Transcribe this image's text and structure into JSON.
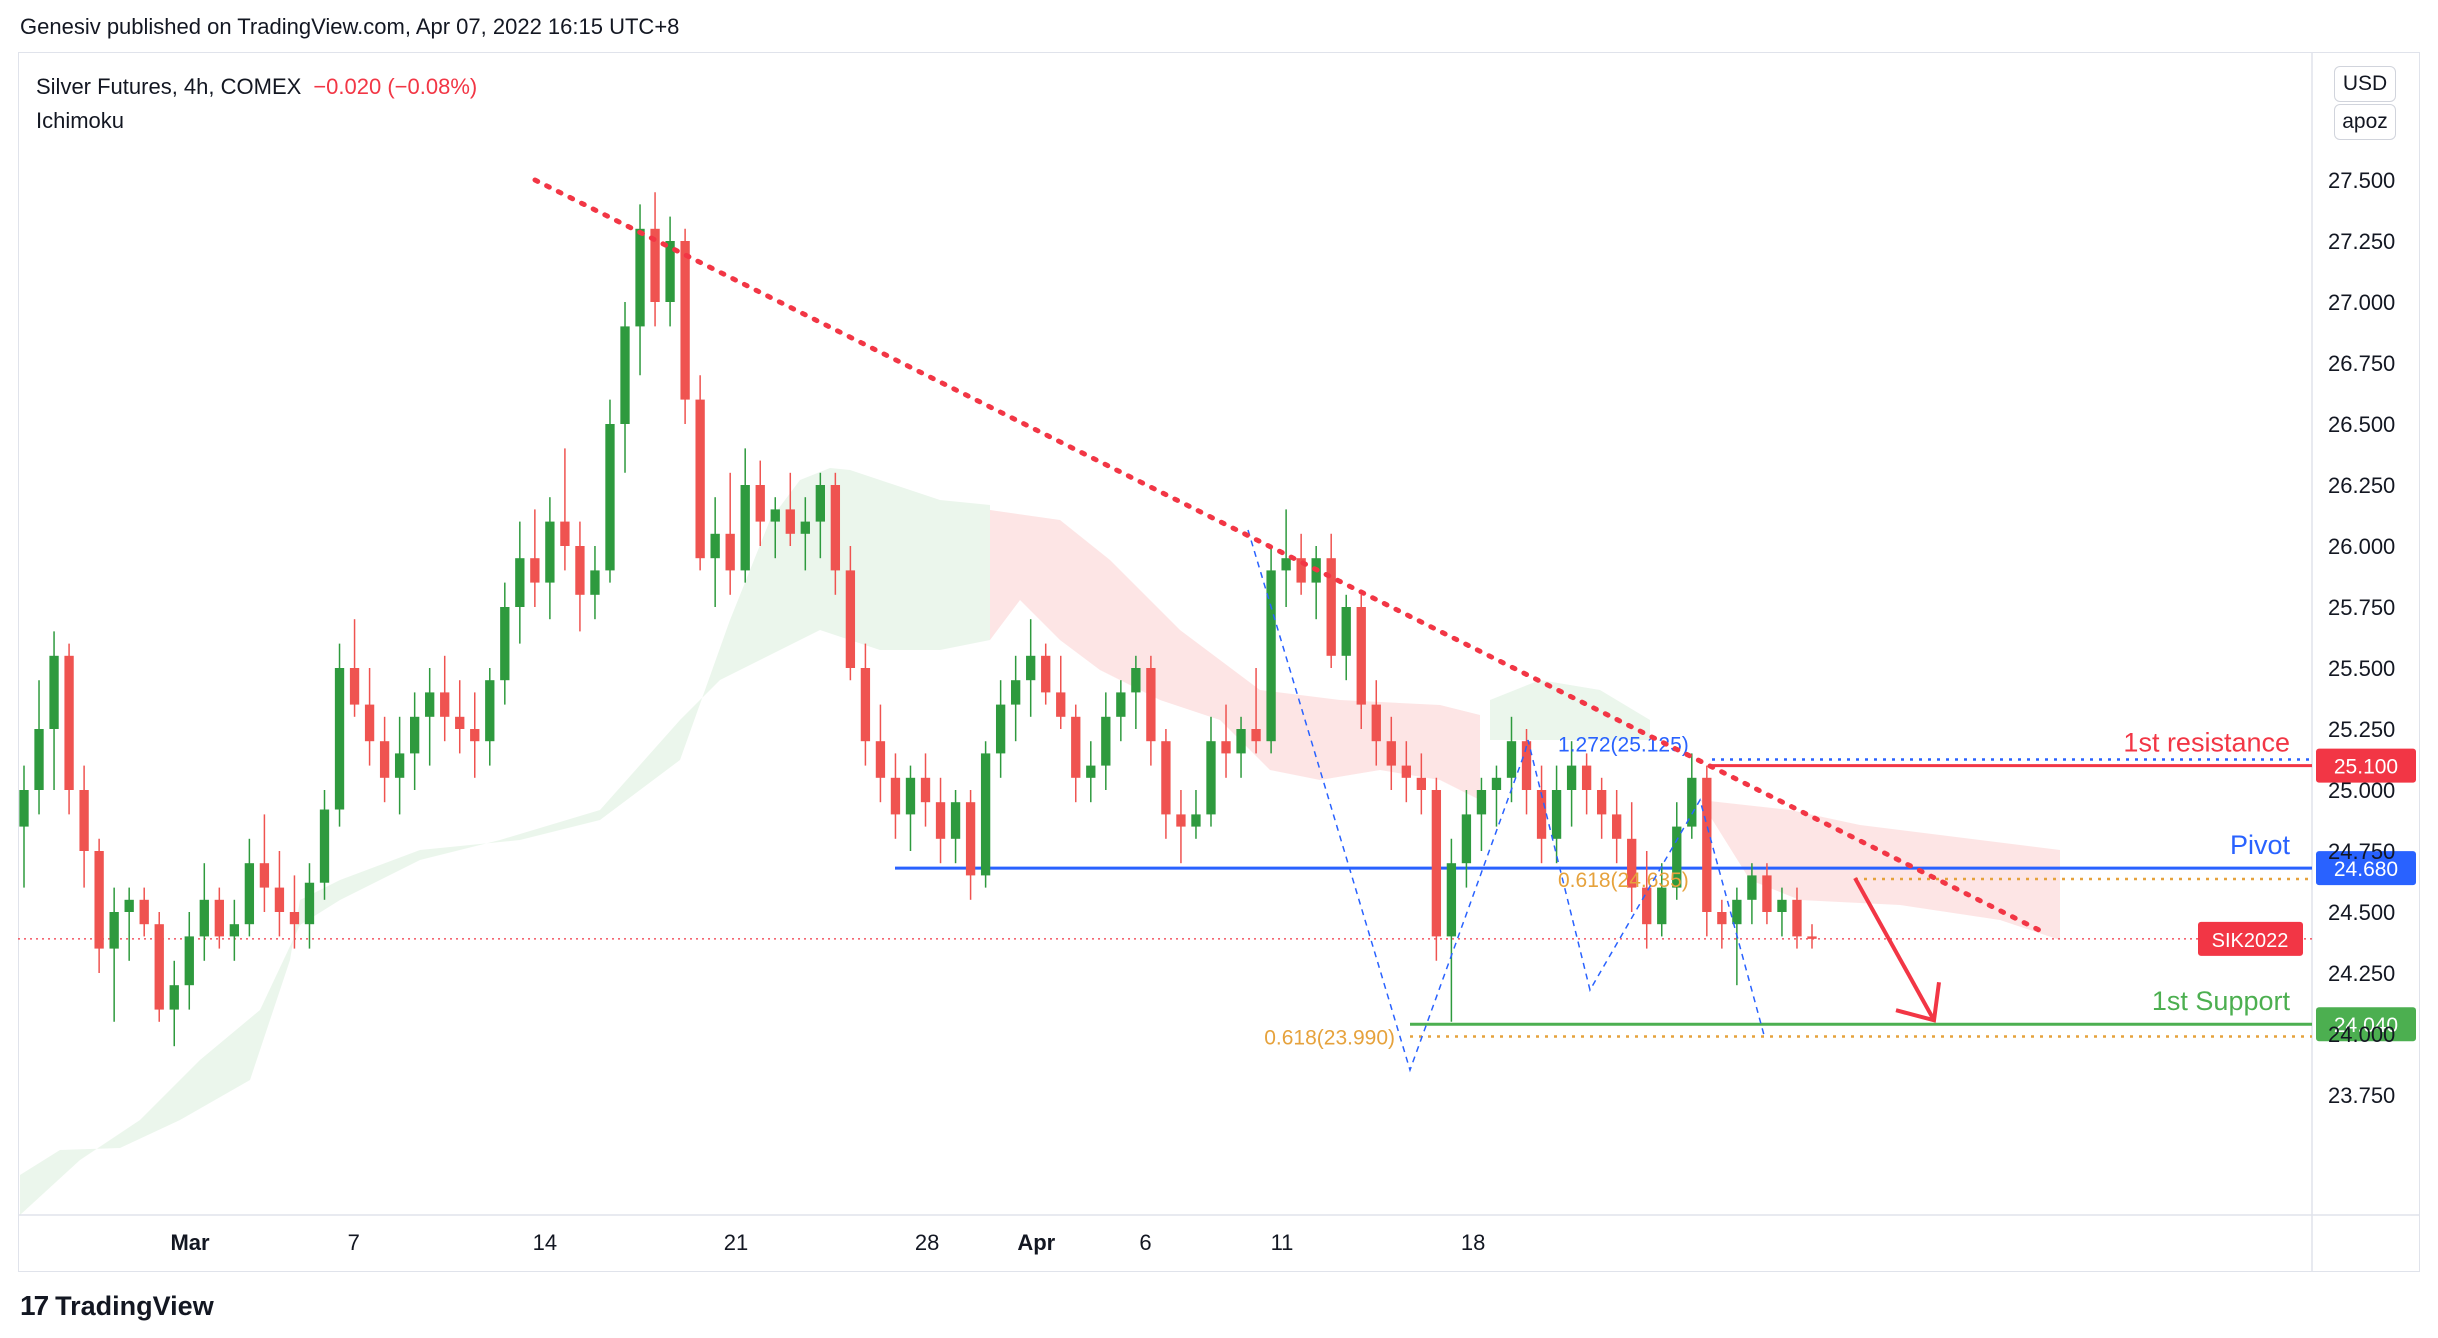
{
  "header": {
    "publisher_line": "Genesiv published on TradingView.com, Apr 07, 2022 16:15 UTC+8"
  },
  "legend": {
    "symbol": "Silver Futures, 4h, COMEX",
    "change": "−0.020 (−0.08%)",
    "indicator": "Ichimoku"
  },
  "scale_controls": {
    "currency": "USD",
    "scale_mode": "apoz"
  },
  "footer": {
    "brand": "TradingView",
    "logo_mark": "17"
  },
  "colors": {
    "up": "#26a69a",
    "up_candle": "#2e9a3e",
    "down_candle": "#ef5350",
    "resistance": "#f23645",
    "pivot": "#2962ff",
    "support": "#4caf50",
    "fib": "#e6a23c",
    "cloud_bull": "#e8f5e9",
    "cloud_bear": "#fde2e2"
  },
  "chart_data": {
    "type": "candlestick",
    "title": "Silver Futures, 4h, COMEX",
    "ylim": [
      23.6,
      27.8
    ],
    "y_ticks": [
      {
        "value": 27.5,
        "label": "27.500"
      },
      {
        "value": 27.25,
        "label": "27.250"
      },
      {
        "value": 27.0,
        "label": "27.000"
      },
      {
        "value": 26.75,
        "label": "26.750"
      },
      {
        "value": 26.5,
        "label": "26.500"
      },
      {
        "value": 26.25,
        "label": "26.250"
      },
      {
        "value": 26.0,
        "label": "26.000"
      },
      {
        "value": 25.75,
        "label": "25.750"
      },
      {
        "value": 25.5,
        "label": "25.500"
      },
      {
        "value": 25.25,
        "label": "25.250"
      },
      {
        "value": 25.0,
        "label": "25.000"
      },
      {
        "value": 24.75,
        "label": "24.750"
      },
      {
        "value": 24.5,
        "label": "24.500"
      },
      {
        "value": 24.25,
        "label": "24.250"
      },
      {
        "value": 24.0,
        "label": "24.000"
      },
      {
        "value": 23.75,
        "label": "23.750"
      }
    ],
    "x_ticks": [
      {
        "day": 1,
        "label": "Mar",
        "bold": true
      },
      {
        "day": 7,
        "label": "7"
      },
      {
        "day": 14,
        "label": "14"
      },
      {
        "day": 21,
        "label": "21"
      },
      {
        "day": 28,
        "label": "28"
      },
      {
        "day": 32,
        "label": "Apr",
        "bold": true
      },
      {
        "day": 36,
        "label": "6"
      },
      {
        "day": 41,
        "label": "11"
      },
      {
        "day": 48,
        "label": "18"
      }
    ],
    "levels": [
      {
        "name": "1st resistance",
        "value": 25.1,
        "label": "25.100",
        "color": "#f23645"
      },
      {
        "name": "Pivot",
        "value": 24.68,
        "label": "24.680",
        "color": "#2962ff"
      },
      {
        "name": "1st Support",
        "value": 24.04,
        "label": "24.040",
        "color": "#4caf50"
      }
    ],
    "fib_annotations": [
      {
        "label": "1.272(25.125)",
        "value": 25.125,
        "color": "#2962ff"
      },
      {
        "label": "0.618(23.990)",
        "value": 23.99,
        "color": "#e6a23c"
      },
      {
        "label": "0.618(24.635)",
        "value": 24.635,
        "color": "#e6a23c"
      }
    ],
    "current_price": {
      "label": "SIK2022",
      "value": 24.39
    },
    "trendline": {
      "from": {
        "day": 9.2,
        "value": 27.5
      },
      "to": {
        "day": 47,
        "value": 24.42
      }
    },
    "forecast_arrow": {
      "from": {
        "day": 39.4,
        "value": 24.68
      },
      "to": {
        "day": 41.4,
        "value": 24.04
      }
    },
    "candles": [
      [
        24.85,
        25.1,
        24.6,
        25.0
      ],
      [
        25.0,
        25.45,
        24.9,
        25.25
      ],
      [
        25.25,
        25.65,
        25.0,
        25.55
      ],
      [
        25.55,
        25.6,
        24.9,
        25.0
      ],
      [
        25.0,
        25.1,
        24.6,
        24.75
      ],
      [
        24.75,
        24.8,
        24.25,
        24.35
      ],
      [
        24.35,
        24.6,
        24.05,
        24.5
      ],
      [
        24.5,
        24.6,
        24.3,
        24.55
      ],
      [
        24.55,
        24.6,
        24.4,
        24.45
      ],
      [
        24.45,
        24.5,
        24.05,
        24.1
      ],
      [
        24.1,
        24.3,
        23.95,
        24.2
      ],
      [
        24.2,
        24.5,
        24.1,
        24.4
      ],
      [
        24.4,
        24.7,
        24.3,
        24.55
      ],
      [
        24.55,
        24.6,
        24.35,
        24.4
      ],
      [
        24.4,
        24.55,
        24.3,
        24.45
      ],
      [
        24.45,
        24.8,
        24.4,
        24.7
      ],
      [
        24.7,
        24.9,
        24.5,
        24.6
      ],
      [
        24.6,
        24.75,
        24.4,
        24.5
      ],
      [
        24.5,
        24.65,
        24.35,
        24.45
      ],
      [
        24.45,
        24.7,
        24.35,
        24.62
      ],
      [
        24.62,
        25.0,
        24.55,
        24.92
      ],
      [
        24.92,
        25.6,
        24.85,
        25.5
      ],
      [
        25.5,
        25.7,
        25.3,
        25.35
      ],
      [
        25.35,
        25.5,
        25.1,
        25.2
      ],
      [
        25.2,
        25.3,
        24.95,
        25.05
      ],
      [
        25.05,
        25.3,
        24.9,
        25.15
      ],
      [
        25.15,
        25.4,
        25.0,
        25.3
      ],
      [
        25.3,
        25.5,
        25.1,
        25.4
      ],
      [
        25.4,
        25.55,
        25.2,
        25.3
      ],
      [
        25.3,
        25.45,
        25.15,
        25.25
      ],
      [
        25.25,
        25.4,
        25.05,
        25.2
      ],
      [
        25.2,
        25.5,
        25.1,
        25.45
      ],
      [
        25.45,
        25.85,
        25.35,
        25.75
      ],
      [
        25.75,
        26.1,
        25.6,
        25.95
      ],
      [
        25.95,
        26.15,
        25.75,
        25.85
      ],
      [
        25.85,
        26.2,
        25.7,
        26.1
      ],
      [
        26.1,
        26.4,
        25.9,
        26.0
      ],
      [
        26.0,
        26.1,
        25.65,
        25.8
      ],
      [
        25.8,
        26.0,
        25.7,
        25.9
      ],
      [
        25.9,
        26.6,
        25.85,
        26.5
      ],
      [
        26.5,
        27.0,
        26.3,
        26.9
      ],
      [
        26.9,
        27.4,
        26.7,
        27.3
      ],
      [
        27.3,
        27.45,
        26.9,
        27.0
      ],
      [
        27.0,
        27.35,
        26.9,
        27.25
      ],
      [
        27.25,
        27.3,
        26.5,
        26.6
      ],
      [
        26.6,
        26.7,
        25.9,
        25.95
      ],
      [
        25.95,
        26.2,
        25.75,
        26.05
      ],
      [
        26.05,
        26.3,
        25.8,
        25.9
      ],
      [
        25.9,
        26.4,
        25.85,
        26.25
      ],
      [
        26.25,
        26.35,
        26.0,
        26.1
      ],
      [
        26.1,
        26.2,
        25.95,
        26.15
      ],
      [
        26.15,
        26.3,
        26.0,
        26.05
      ],
      [
        26.05,
        26.2,
        25.9,
        26.1
      ],
      [
        26.1,
        26.3,
        25.95,
        26.25
      ],
      [
        26.25,
        26.3,
        25.8,
        25.9
      ],
      [
        25.9,
        26.0,
        25.45,
        25.5
      ],
      [
        25.5,
        25.6,
        25.1,
        25.2
      ],
      [
        25.2,
        25.35,
        24.95,
        25.05
      ],
      [
        25.05,
        25.15,
        24.8,
        24.9
      ],
      [
        24.9,
        25.1,
        24.75,
        25.05
      ],
      [
        25.05,
        25.15,
        24.85,
        24.95
      ],
      [
        24.95,
        25.05,
        24.7,
        24.8
      ],
      [
        24.8,
        25.0,
        24.7,
        24.95
      ],
      [
        24.95,
        25.0,
        24.55,
        24.65
      ],
      [
        24.65,
        25.2,
        24.6,
        25.15
      ],
      [
        25.15,
        25.45,
        25.05,
        25.35
      ],
      [
        25.35,
        25.55,
        25.2,
        25.45
      ],
      [
        25.45,
        25.7,
        25.3,
        25.55
      ],
      [
        25.55,
        25.6,
        25.35,
        25.4
      ],
      [
        25.4,
        25.55,
        25.25,
        25.3
      ],
      [
        25.3,
        25.35,
        24.95,
        25.05
      ],
      [
        25.05,
        25.2,
        24.95,
        25.1
      ],
      [
        25.1,
        25.4,
        25.0,
        25.3
      ],
      [
        25.3,
        25.45,
        25.2,
        25.4
      ],
      [
        25.4,
        25.55,
        25.25,
        25.5
      ],
      [
        25.5,
        25.55,
        25.1,
        25.2
      ],
      [
        25.2,
        25.25,
        24.8,
        24.9
      ],
      [
        24.9,
        25.0,
        24.7,
        24.85
      ],
      [
        24.85,
        25.0,
        24.8,
        24.9
      ],
      [
        24.9,
        25.3,
        24.85,
        25.2
      ],
      [
        25.2,
        25.35,
        25.05,
        25.15
      ],
      [
        25.15,
        25.3,
        25.05,
        25.25
      ],
      [
        25.25,
        25.5,
        25.15,
        25.2
      ],
      [
        25.2,
        26.0,
        25.15,
        25.9
      ],
      [
        25.9,
        26.15,
        25.75,
        25.95
      ],
      [
        25.95,
        26.05,
        25.8,
        25.85
      ],
      [
        25.85,
        26.0,
        25.7,
        25.95
      ],
      [
        25.95,
        26.05,
        25.5,
        25.55
      ],
      [
        25.55,
        25.8,
        25.45,
        25.75
      ],
      [
        25.75,
        25.8,
        25.25,
        25.35
      ],
      [
        25.35,
        25.45,
        25.1,
        25.2
      ],
      [
        25.2,
        25.3,
        25.0,
        25.1
      ],
      [
        25.1,
        25.2,
        24.95,
        25.05
      ],
      [
        25.05,
        25.15,
        24.9,
        25.0
      ],
      [
        25.0,
        25.05,
        24.3,
        24.4
      ],
      [
        24.4,
        24.8,
        24.05,
        24.7
      ],
      [
        24.7,
        25.0,
        24.6,
        24.9
      ],
      [
        24.9,
        25.05,
        24.75,
        25.0
      ],
      [
        25.0,
        25.1,
        24.85,
        25.05
      ],
      [
        25.05,
        25.3,
        24.95,
        25.2
      ],
      [
        25.2,
        25.25,
        24.9,
        25.0
      ],
      [
        25.0,
        25.1,
        24.7,
        24.8
      ],
      [
        24.8,
        25.1,
        24.7,
        25.0
      ],
      [
        25.0,
        25.2,
        24.85,
        25.1
      ],
      [
        25.1,
        25.15,
        24.9,
        25.0
      ],
      [
        25.0,
        25.05,
        24.8,
        24.9
      ],
      [
        24.9,
        25.0,
        24.7,
        24.8
      ],
      [
        24.8,
        24.95,
        24.5,
        24.6
      ],
      [
        24.6,
        24.75,
        24.35,
        24.45
      ],
      [
        24.45,
        24.7,
        24.4,
        24.6
      ],
      [
        24.6,
        24.95,
        24.55,
        24.85
      ],
      [
        24.85,
        25.15,
        24.8,
        25.05
      ],
      [
        25.05,
        25.1,
        24.4,
        24.5
      ],
      [
        24.5,
        24.55,
        24.35,
        24.45
      ],
      [
        24.45,
        24.6,
        24.2,
        24.55
      ],
      [
        24.55,
        24.7,
        24.45,
        24.65
      ],
      [
        24.65,
        24.7,
        24.45,
        24.5
      ],
      [
        24.5,
        24.6,
        24.4,
        24.55
      ],
      [
        24.55,
        24.6,
        24.35,
        24.4
      ],
      [
        24.4,
        24.45,
        24.35,
        24.39
      ]
    ]
  }
}
